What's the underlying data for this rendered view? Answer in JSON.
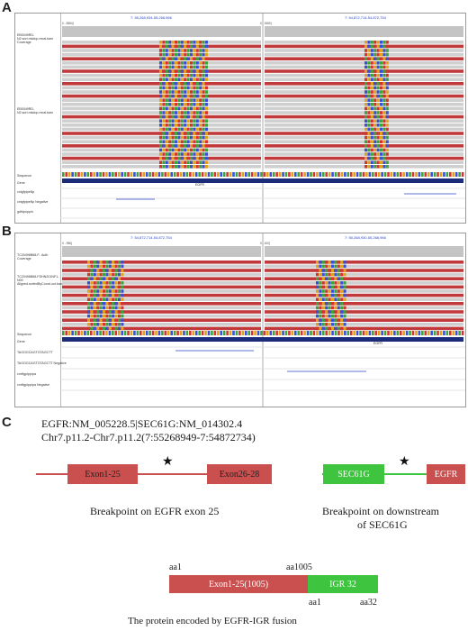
{
  "panelA": {
    "label": "A",
    "locus_left": "7: 55,268,934-55,268,966",
    "locus_right": "7: 54,872,714-54,872,754",
    "zoom_left": "0 - 5554]",
    "zoom_right": "0 - 1550]",
    "coverage_name": "EB0049RD-N2.sort.mkdup.recal.bam Coverage",
    "reads_name": "EB0049RD-N2.sort.mkdup.recal.bam",
    "sequence_label": "Sequence",
    "gene_label": "Gene",
    "gene_name": "EGFR",
    "track1": "cntgfplpeNp",
    "track2": "cntgfplpeNp Negative",
    "track3": "gdfdpnppln"
  },
  "panelB": {
    "label": "B",
    "locus_left": "7: 54,872,714-54,872,754",
    "locus_right": "7: 55,268,930-55,268,966",
    "zoom_left": "0 - 996]",
    "zoom_right": "0 - 100]",
    "coverage_name": "TC20496B68-F.. Auth Coverage",
    "reads_name": "TC20496B68-FDHN201NF1-N00 Aligned.sortedByCoord.out.bam",
    "sequence_label": "Sequence",
    "gene_label": "Gene",
    "gene_name": "EGFR",
    "track1": "TAGGGCAGTGTAGCTT",
    "track2": "TAGGGCAGTGTAGCTT Negative",
    "track3": "cnrtfgplpprpa",
    "track4": "cnrtfgplpprpa Negative"
  },
  "panelC": {
    "label": "C",
    "title_line1": "EGFR:NM_005228.5|SEC61G:NM_014302.4",
    "title_line2": "Chr7.p11.2-Chr7.p11.2(7:55268949-7:54872734)",
    "exon1": "Exon1-25",
    "exon2": "Exon26-28",
    "sec61g": "SEC61G",
    "egfr": "EGFR",
    "star": "★",
    "break1": "Breakpoint on EGFR exon 25",
    "break2_line1": "Breakpoint on downstream",
    "break2_line2": "of SEC61G",
    "aa1_top": "aa1",
    "aa1005": "aa1005",
    "protein_exon": "Exon1-25(1005)",
    "igr": "IGR 32",
    "aa1_bottom": "aa1",
    "aa32": "aa32",
    "caption": "The protein encoded by EGFR-IGR fusion",
    "colors": {
      "exon": "#c9504f",
      "sec": "#3ec43e",
      "line": "#c9504f"
    }
  }
}
